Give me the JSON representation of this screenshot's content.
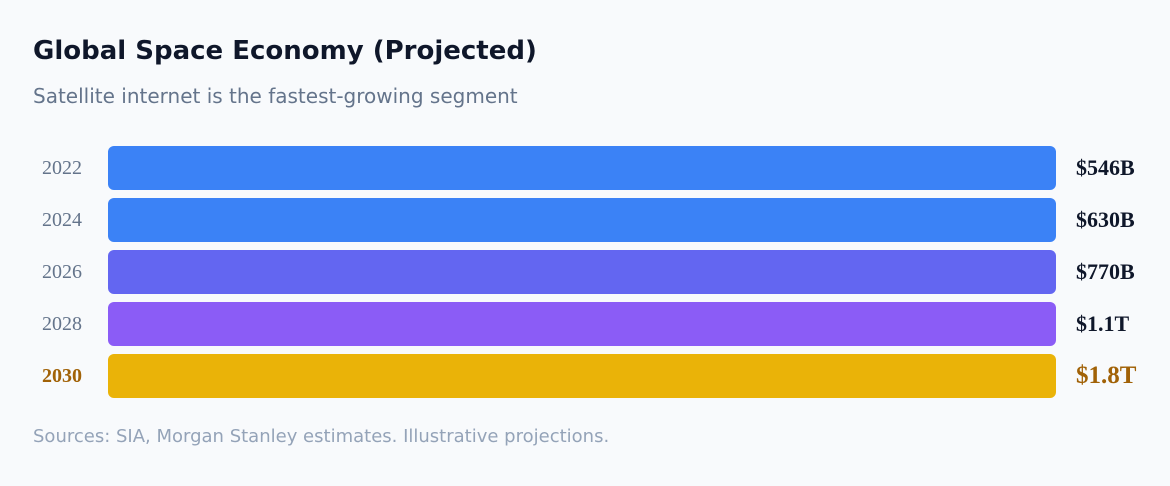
{
  "header": {
    "title": "Global Space Economy (Projected)",
    "subtitle": "Satellite internet is the fastest-growing segment"
  },
  "rows": [
    {
      "year": "2022",
      "value": "$546B",
      "color": "#3b82f6"
    },
    {
      "year": "2024",
      "value": "$630B",
      "color": "#3b82f6"
    },
    {
      "year": "2026",
      "value": "$770B",
      "color": "#6366f1"
    },
    {
      "year": "2028",
      "value": "$1.1T",
      "color": "#8b5cf6"
    },
    {
      "year": "2030",
      "value": "$1.8T",
      "color": "#eab308",
      "highlight": true
    }
  ],
  "highlight_text_color": "#a16207",
  "footer": {
    "source": "Sources: SIA, Morgan Stanley estimates. Illustrative projections."
  }
}
